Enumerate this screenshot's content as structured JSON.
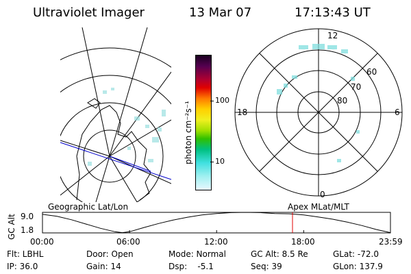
{
  "header": {
    "instrument": "Ultraviolet Imager",
    "date": "13 Mar 07",
    "time": "17:13:43 UT"
  },
  "colorbar": {
    "unit_label": "photon cm⁻²s⁻¹",
    "ticks": [
      "100",
      "10"
    ]
  },
  "geo_map": {
    "label": "Geographic Lat/Lon"
  },
  "polar_map": {
    "label": "Apex MLat/MLT",
    "mlt_labels": {
      "top": "12",
      "bottom": "0",
      "left": "18",
      "right": "6"
    },
    "lat_labels": [
      "60",
      "70",
      "80"
    ]
  },
  "altitude_plot": {
    "ylabel": "GC Alt",
    "ytick_labels": [
      "9.0",
      "1.8"
    ],
    "xtick_labels": [
      "00:00",
      "06:00",
      "12:00",
      "18:00",
      "23:59"
    ]
  },
  "chart_data": {
    "type": "line",
    "title": "",
    "xlabel": "",
    "ylabel": "GC Alt",
    "x": [
      0,
      1,
      2,
      3,
      4,
      5,
      5.5,
      6,
      7,
      8,
      9,
      10,
      11,
      12,
      13,
      14,
      15,
      16,
      17,
      18,
      19,
      20,
      21,
      22,
      23,
      23.98
    ],
    "series": [
      {
        "values": [
          8.3,
          7.6,
          6.4,
          4.9,
          3.4,
          2.2,
          1.9,
          2.2,
          3.7,
          5.1,
          6.3,
          7.3,
          8.1,
          8.6,
          8.9,
          9.0,
          8.9,
          8.6,
          8.5,
          8.1,
          7.4,
          6.6,
          5.6,
          4.4,
          3.0,
          1.9
        ]
      }
    ],
    "xlim": [
      0,
      23.98
    ],
    "ylim": [
      1.8,
      9.0
    ],
    "marker_time": 17.23
  },
  "status": {
    "flt": "Flt: LBHL",
    "door": "Door: Open",
    "mode": "Mode: Normal",
    "gc_alt": "GC Alt: 8.5 Re",
    "glat": "GLat: -72.0",
    "ip": "IP: 36.0",
    "gain": "Gain: 14",
    "dsp": "Dsp:    -5.1",
    "seq": "Seq: 39",
    "glon": "GLon: 137.9"
  },
  "colors": {
    "marker": "#e00000",
    "track": "#0000cc"
  }
}
